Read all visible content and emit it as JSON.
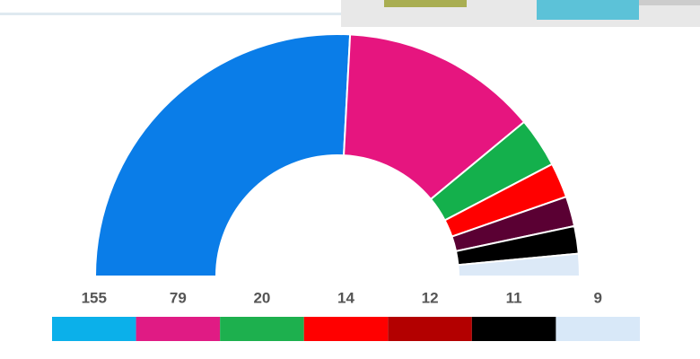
{
  "chart_data": {
    "type": "pie",
    "values": [
      155,
      79,
      20,
      14,
      12,
      11,
      9
    ],
    "colors": [
      "#0a7de8",
      "#e6157f",
      "#14b04c",
      "#ff0000",
      "#5a0033",
      "#000000",
      "#dce9f7"
    ],
    "legend_colors": [
      "#0bb0ea",
      "#e01b84",
      "#1db04e",
      "#ff0000",
      "#b30000",
      "#000000",
      "#d8e8f8"
    ]
  }
}
